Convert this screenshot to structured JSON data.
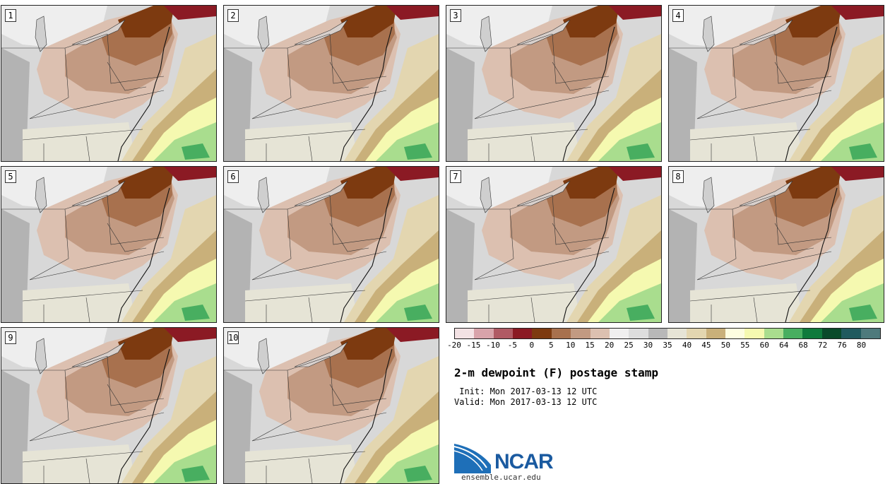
{
  "panels": [
    {
      "label": "1"
    },
    {
      "label": "2"
    },
    {
      "label": "3"
    },
    {
      "label": "4"
    },
    {
      "label": "5"
    },
    {
      "label": "6"
    },
    {
      "label": "7"
    },
    {
      "label": "8"
    },
    {
      "label": "9"
    },
    {
      "label": "10"
    }
  ],
  "colorbar": {
    "colors": [
      "#f3e2e4",
      "#d8a3aa",
      "#b05a64",
      "#8b1a24",
      "#7d3a10",
      "#a8714e",
      "#c29a82",
      "#dcc0b0",
      "#f0efef",
      "#dddddd",
      "#b8b8b8",
      "#e6e4d6",
      "#e3d6b0",
      "#c9b07a",
      "#fdfde0",
      "#f5f9b0",
      "#a9dd8e",
      "#48ae60",
      "#0f7a3c",
      "#0a4a2a",
      "#205a5e",
      "#4e7a7c"
    ],
    "tick_labels": [
      "-20",
      "-15",
      "-10",
      "-5",
      "0",
      "5",
      "10",
      "15",
      "20",
      "25",
      "30",
      "35",
      "40",
      "45",
      "50",
      "55",
      "60",
      "64",
      "68",
      "72",
      "76",
      "80"
    ]
  },
  "title": "2-m dewpoint (F) postage stamp",
  "init_text": " Init: Mon 2017-03-13 12 UTC",
  "valid_text": "Valid: Mon 2017-03-13 12 UTC",
  "logo_text": "NCAR",
  "url": "ensemble.ucar.edu"
}
